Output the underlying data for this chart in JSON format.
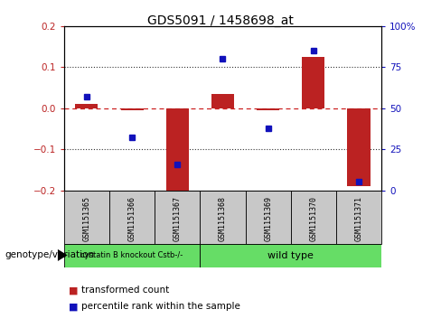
{
  "title": "GDS5091 / 1458698_at",
  "samples": [
    "GSM1151365",
    "GSM1151366",
    "GSM1151367",
    "GSM1151368",
    "GSM1151369",
    "GSM1151370",
    "GSM1151371"
  ],
  "transformed_count": [
    0.01,
    -0.005,
    -0.205,
    0.035,
    -0.005,
    0.125,
    -0.19
  ],
  "percentile_rank": [
    57,
    32,
    16,
    80,
    38,
    85,
    5
  ],
  "group1_label": "cystatin B knockout Cstb-/-",
  "group1_samples": 3,
  "group2_label": "wild type",
  "group2_samples": 4,
  "group_color": "#66dd66",
  "ylim_left": [
    -0.2,
    0.2
  ],
  "ylim_right": [
    0,
    100
  ],
  "yticks_left": [
    -0.2,
    -0.1,
    0.0,
    0.1,
    0.2
  ],
  "yticks_right": [
    0,
    25,
    50,
    75,
    100
  ],
  "ytick_labels_right": [
    "0",
    "25",
    "50",
    "75",
    "100%"
  ],
  "bar_color": "#bb2222",
  "dot_color": "#1111bb",
  "zero_line_color": "#cc2222",
  "grid_color": "#333333",
  "tick_label_box_color": "#c8c8c8",
  "bar_width": 0.5,
  "legend_bar_label": "transformed count",
  "legend_dot_label": "percentile rank within the sample",
  "genotype_label": "genotype/variation"
}
